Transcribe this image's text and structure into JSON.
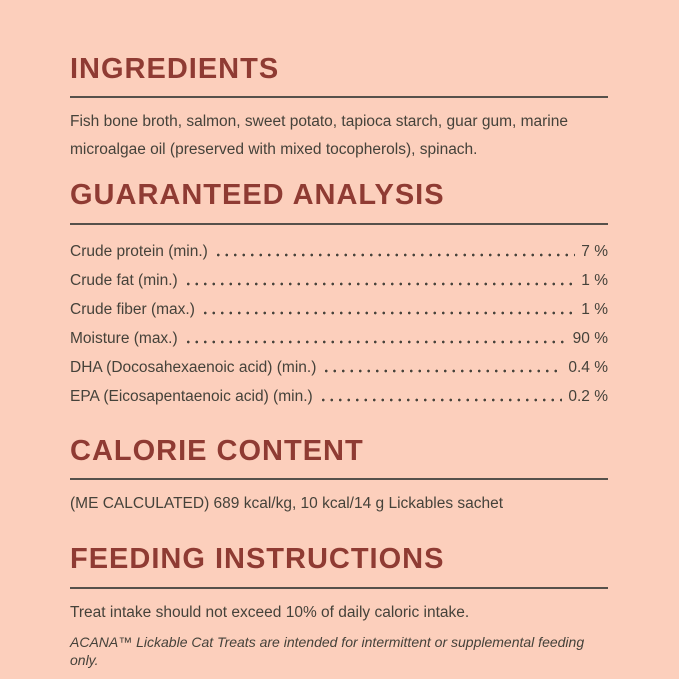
{
  "page": {
    "background_color": "#fccfbc",
    "heading_color": "#8f3b33",
    "text_color": "#45423a",
    "rule_color": "#56514b"
  },
  "sections": {
    "ingredients": {
      "title": "INGREDIENTS",
      "body": "Fish bone broth, salmon, sweet potato, tapioca starch, guar gum, marine microalgae oil (preserved with mixed tocopherols), spinach."
    },
    "guaranteed_analysis": {
      "title": "GUARANTEED ANALYSIS",
      "rows": [
        {
          "label": "Crude protein (min.)",
          "value": "7 %"
        },
        {
          "label": "Crude fat (min.)",
          "value": "1 %"
        },
        {
          "label": "Crude fiber (max.)",
          "value": "1 %"
        },
        {
          "label": "Moisture (max.)",
          "value": "90 %"
        },
        {
          "label": "DHA (Docosahexaenoic acid) (min.)",
          "value": "0.4 %"
        },
        {
          "label": "EPA (Eicosapentaenoic acid) (min.)",
          "value": "0.2 %"
        }
      ]
    },
    "calorie_content": {
      "title": "CALORIE CONTENT",
      "body": "(ME CALCULATED) 689 kcal/kg, 10 kcal/14 g Lickables sachet"
    },
    "feeding_instructions": {
      "title": "FEEDING INSTRUCTIONS",
      "body": "Treat intake should not exceed 10% of daily caloric intake.",
      "footnote": "ACANA™ Lickable Cat Treats are intended for intermittent or supplemental feeding only."
    }
  }
}
